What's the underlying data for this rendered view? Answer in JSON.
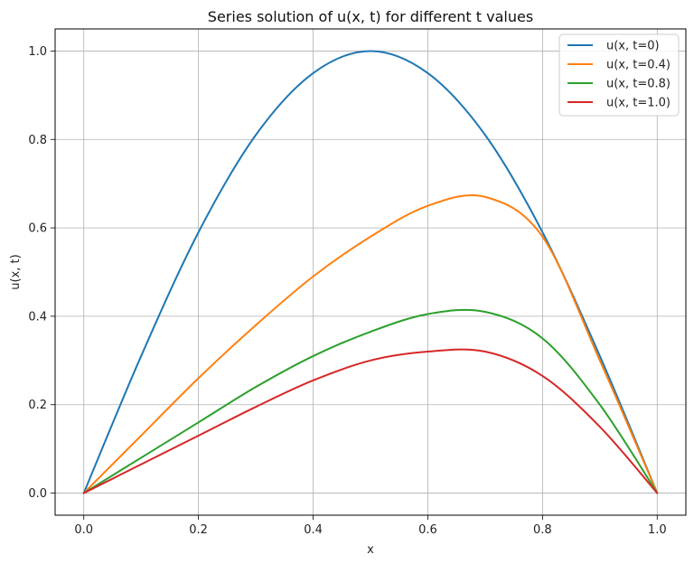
{
  "chart_data": {
    "type": "line",
    "title": "Series solution of u(x, t) for different t values",
    "xlabel": "x",
    "ylabel": "u(x, t)",
    "xlim": [
      -0.05,
      1.05
    ],
    "ylim": [
      -0.05,
      1.05
    ],
    "xticks": [
      0.0,
      0.2,
      0.4,
      0.6,
      0.8,
      1.0
    ],
    "xtick_labels": [
      "0.0",
      "0.2",
      "0.4",
      "0.6",
      "0.8",
      "1.0"
    ],
    "yticks": [
      0.0,
      0.2,
      0.4,
      0.6,
      0.8,
      1.0
    ],
    "ytick_labels": [
      "0.0",
      "0.2",
      "0.4",
      "0.6",
      "0.8",
      "1.0"
    ],
    "grid": true,
    "legend_position": "top-right",
    "x": [
      0.0,
      0.1,
      0.2,
      0.3,
      0.4,
      0.5,
      0.6,
      0.7,
      0.8,
      0.9,
      1.0
    ],
    "series": [
      {
        "name": "u(x, t=0)",
        "color": "#1f77b4",
        "values": [
          0.0,
          0.31,
          0.59,
          0.81,
          0.95,
          1.0,
          0.95,
          0.81,
          0.59,
          0.31,
          0.0
        ]
      },
      {
        "name": "u(x, t=0.4)",
        "color": "#ff7f0e",
        "values": [
          0.0,
          0.13,
          0.26,
          0.38,
          0.49,
          0.58,
          0.65,
          0.67,
          0.58,
          0.3,
          0.0
        ]
      },
      {
        "name": "u(x, t=0.8)",
        "color": "#2ca02c",
        "values": [
          0.0,
          0.08,
          0.16,
          0.24,
          0.31,
          0.365,
          0.405,
          0.41,
          0.35,
          0.2,
          0.0
        ]
      },
      {
        "name": "u(x, t=1.0)",
        "color": "#d62728",
        "values": [
          0.0,
          0.065,
          0.13,
          0.195,
          0.255,
          0.3,
          0.32,
          0.32,
          0.265,
          0.15,
          0.0
        ]
      }
    ]
  }
}
